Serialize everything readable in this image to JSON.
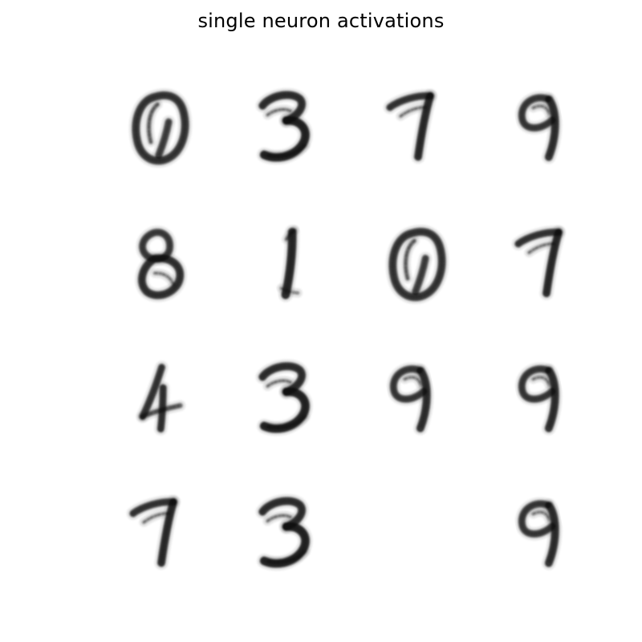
{
  "figure": {
    "title": "single neuron activations"
  },
  "panels": [
    {
      "glyph": "0"
    },
    {
      "glyph": "3"
    },
    {
      "glyph": "7"
    },
    {
      "glyph": "9"
    },
    {
      "glyph": "8"
    },
    {
      "glyph": "1"
    },
    {
      "glyph": "0"
    },
    {
      "glyph": "7"
    },
    {
      "glyph": "4"
    },
    {
      "glyph": "3"
    },
    {
      "glyph": "9"
    },
    {
      "glyph": "9"
    },
    {
      "glyph": "7"
    },
    {
      "glyph": "3"
    },
    {
      "glyph": "blank"
    },
    {
      "glyph": "9"
    }
  ],
  "colors": {
    "ink": "#111111",
    "background": "#ffffff"
  }
}
